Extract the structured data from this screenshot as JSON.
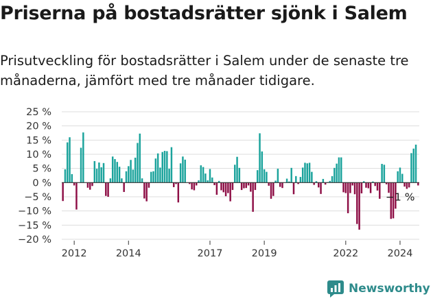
{
  "header": {
    "title": "Priserna på bostadsrätter sjönk i Salem",
    "subtitle": "Prisutveckling för bostadsrätter i Salem under de senaste tre månaderna, jämfört med tre månader tidigare."
  },
  "brand": {
    "name": "Newsworthy",
    "icon": "newsworthy-logo-icon"
  },
  "colors": {
    "positive": "#1ba39c",
    "negative": "#8e0f46",
    "grid": "#dddddd",
    "text": "#333333"
  },
  "chart_data": {
    "type": "bar",
    "title": "Priserna på bostadsrätter sjönk i Salem",
    "xlabel": "",
    "ylabel": "",
    "ylim": [
      -20,
      25
    ],
    "yticks": [
      25,
      20,
      15,
      10,
      5,
      0,
      -5,
      -10,
      -15,
      -20
    ],
    "ytick_labels": [
      "25 %",
      "20 %",
      "15 %",
      "10 %",
      "5 %",
      "0 %",
      "−5 %",
      "−10 %",
      "−15 %",
      "−20 %"
    ],
    "xtick_labels": [
      "2012",
      "2014",
      "2017",
      "2019",
      "2022",
      "2024"
    ],
    "xtick_index": [
      5,
      29,
      65,
      89,
      125,
      149
    ],
    "start": "2011-01",
    "frequency": "monthly",
    "values": [
      -6.5,
      4.7,
      14.2,
      16.0,
      3.0,
      -1.0,
      -9.5,
      0,
      12.3,
      17.7,
      0,
      -1.8,
      -2.5,
      -1.2,
      7.6,
      4.9,
      7.1,
      5.4,
      6.9,
      -4.7,
      -5.0,
      1.5,
      9.2,
      8.3,
      7.3,
      5.6,
      1.5,
      -3.3,
      4.0,
      5.8,
      8.0,
      4.6,
      8.8,
      14.0,
      17.3,
      1.5,
      -5.6,
      -6.6,
      -1.8,
      3.8,
      4.0,
      8.5,
      10.3,
      5.3,
      10.8,
      11.2,
      11.1,
      4.9,
      12.5,
      -1.6,
      -0.5,
      -7.0,
      6.8,
      9.2,
      8.1,
      0,
      -0.5,
      -2.4,
      -2.7,
      -1.0,
      0.8,
      6.1,
      5.5,
      3.2,
      0.8,
      4.8,
      1.8,
      -0.9,
      -4.3,
      0.6,
      -2.7,
      -3.4,
      -4.8,
      -3.7,
      -6.6,
      -2.6,
      6.3,
      9.1,
      5.2,
      -2.6,
      -2.0,
      -1.9,
      -1.0,
      -3.2,
      -10.3,
      -2.6,
      4.4,
      17.4,
      11.0,
      4.7,
      3.8,
      -1.1,
      -5.7,
      -4.7,
      0.7,
      4.9,
      -1.5,
      -1.9,
      0,
      1.4,
      0.4,
      5.2,
      -4.1,
      2.3,
      -0.5,
      2.0,
      5.3,
      7.0,
      6.8,
      7.0,
      3.8,
      -0.8,
      0.5,
      -1.7,
      -4.0,
      1.3,
      -0.7,
      0.2,
      0.6,
      2.3,
      5.2,
      6.7,
      8.9,
      8.9,
      -3.4,
      -3.7,
      -10.8,
      -3.7,
      -1.0,
      -4.1,
      -14.6,
      -16.6,
      -3.8,
      0.5,
      -1.8,
      -2.0,
      -3.7,
      0.4,
      -1.2,
      -2.8,
      -5.7,
      6.6,
      6.3,
      -0.6,
      -3.6,
      -12.8,
      -12.6,
      -9.2,
      4.0,
      5.3,
      3.1,
      -1.4,
      -2.2,
      -1.7,
      10.4,
      12.0,
      13.4,
      -1.0
    ],
    "last_value_label": "−1 %"
  }
}
